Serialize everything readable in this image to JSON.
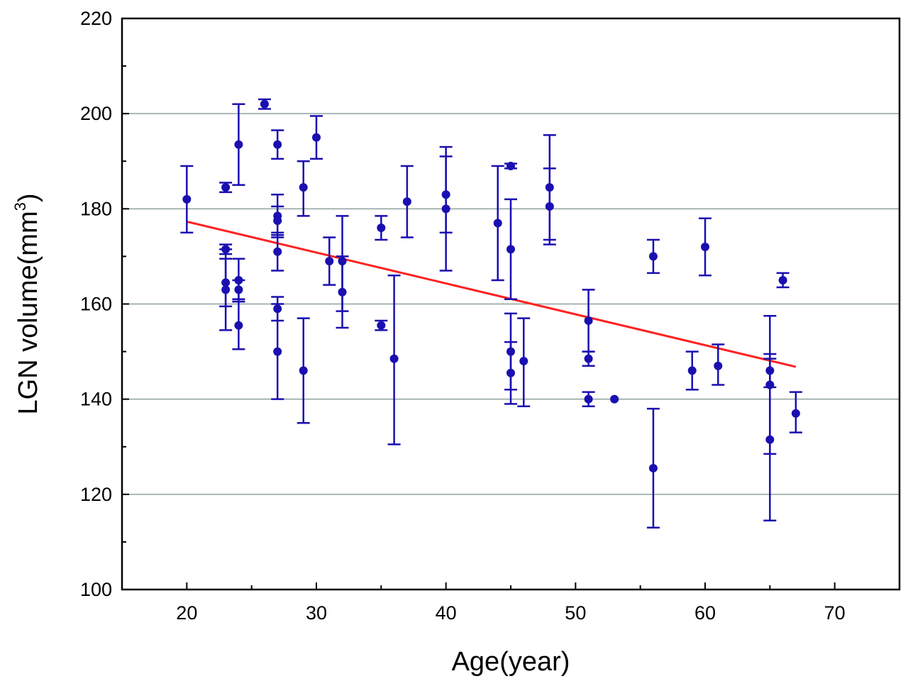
{
  "chart_data": {
    "type": "scatter",
    "title": "",
    "xlabel": "Age(year)",
    "ylabel": "LGN volume(mm",
    "ylabel_sup": "3",
    "ylabel_close": ")",
    "xlim": [
      15,
      75
    ],
    "ylim": [
      100,
      220
    ],
    "xticks": [
      20,
      30,
      40,
      50,
      60,
      70
    ],
    "yticks": [
      100,
      120,
      140,
      160,
      180,
      200,
      220
    ],
    "grid": "horizontal",
    "marker_color": "#1a0fb0",
    "line_color": "#ff2020",
    "points": [
      {
        "x": 20,
        "y": 182,
        "lo": 175,
        "hi": 189
      },
      {
        "x": 23,
        "y": 184.5,
        "lo": 183.5,
        "hi": 185.5
      },
      {
        "x": 23,
        "y": 171.5,
        "lo": 170.5,
        "hi": 172.5
      },
      {
        "x": 23,
        "y": 164.5,
        "lo": 159.5,
        "hi": 169.5
      },
      {
        "x": 23,
        "y": 163,
        "lo": 154.5,
        "hi": 171.5
      },
      {
        "x": 24,
        "y": 193.5,
        "lo": 185,
        "hi": 202
      },
      {
        "x": 24,
        "y": 165,
        "lo": 160.5,
        "hi": 169.5
      },
      {
        "x": 24,
        "y": 163,
        "lo": 161,
        "hi": 165
      },
      {
        "x": 24,
        "y": 155.5,
        "lo": 150.5,
        "hi": 160.5
      },
      {
        "x": 26,
        "y": 202,
        "lo": 201,
        "hi": 203
      },
      {
        "x": 27,
        "y": 193.5,
        "lo": 190.5,
        "hi": 196.5
      },
      {
        "x": 27,
        "y": 178.5,
        "lo": 174,
        "hi": 183
      },
      {
        "x": 27,
        "y": 177.5,
        "lo": 174.5,
        "hi": 180.5
      },
      {
        "x": 27,
        "y": 171,
        "lo": 167,
        "hi": 175
      },
      {
        "x": 27,
        "y": 159,
        "lo": 156.5,
        "hi": 161.5
      },
      {
        "x": 27,
        "y": 150,
        "lo": 140,
        "hi": 160
      },
      {
        "x": 29,
        "y": 184.5,
        "lo": 178.5,
        "hi": 190
      },
      {
        "x": 29,
        "y": 146,
        "lo": 135,
        "hi": 157
      },
      {
        "x": 30,
        "y": 195,
        "lo": 190.5,
        "hi": 199.5
      },
      {
        "x": 31,
        "y": 169,
        "lo": 164,
        "hi": 174
      },
      {
        "x": 32,
        "y": 169,
        "lo": 158.5,
        "hi": 178.5
      },
      {
        "x": 32,
        "y": 162.5,
        "lo": 155,
        "hi": 170
      },
      {
        "x": 35,
        "y": 176,
        "lo": 173.5,
        "hi": 178.5
      },
      {
        "x": 35,
        "y": 155.5,
        "lo": 154.5,
        "hi": 156.5
      },
      {
        "x": 36,
        "y": 148.5,
        "lo": 130.5,
        "hi": 166
      },
      {
        "x": 37,
        "y": 181.5,
        "lo": 174,
        "hi": 189
      },
      {
        "x": 40,
        "y": 183,
        "lo": 175,
        "hi": 191
      },
      {
        "x": 40,
        "y": 180,
        "lo": 167,
        "hi": 193
      },
      {
        "x": 44,
        "y": 177,
        "lo": 165,
        "hi": 189
      },
      {
        "x": 45,
        "y": 189,
        "lo": 188.5,
        "hi": 189.5
      },
      {
        "x": 45,
        "y": 171.5,
        "lo": 161,
        "hi": 182
      },
      {
        "x": 45,
        "y": 150,
        "lo": 142,
        "hi": 158
      },
      {
        "x": 45,
        "y": 145.5,
        "lo": 139,
        "hi": 152
      },
      {
        "x": 46,
        "y": 148,
        "lo": 138.5,
        "hi": 157
      },
      {
        "x": 48,
        "y": 184.5,
        "lo": 173.5,
        "hi": 195.5
      },
      {
        "x": 48,
        "y": 180.5,
        "lo": 172.5,
        "hi": 188.5
      },
      {
        "x": 51,
        "y": 156.5,
        "lo": 150,
        "hi": 163
      },
      {
        "x": 51,
        "y": 148.5,
        "lo": 147,
        "hi": 150
      },
      {
        "x": 51,
        "y": 140,
        "lo": 138.5,
        "hi": 141.5
      },
      {
        "x": 53,
        "y": 140
      },
      {
        "x": 56,
        "y": 170,
        "lo": 166.5,
        "hi": 173.5
      },
      {
        "x": 56,
        "y": 125.5,
        "lo": 113,
        "hi": 138
      },
      {
        "x": 59,
        "y": 146,
        "lo": 142,
        "hi": 150
      },
      {
        "x": 60,
        "y": 172,
        "lo": 166,
        "hi": 178
      },
      {
        "x": 61,
        "y": 147,
        "lo": 143,
        "hi": 151.5
      },
      {
        "x": 65,
        "y": 146,
        "lo": 142.5,
        "hi": 149.5
      },
      {
        "x": 65,
        "y": 143,
        "lo": 128.5,
        "hi": 157.5
      },
      {
        "x": 65,
        "y": 131.5,
        "lo": 114.5,
        "hi": 148.5
      },
      {
        "x": 66,
        "y": 165,
        "lo": 163.5,
        "hi": 166.5
      },
      {
        "x": 67,
        "y": 137,
        "lo": 133,
        "hi": 141.5
      }
    ],
    "fit_line": {
      "x": [
        20,
        67
      ],
      "y": [
        177.3,
        146.8
      ]
    }
  }
}
